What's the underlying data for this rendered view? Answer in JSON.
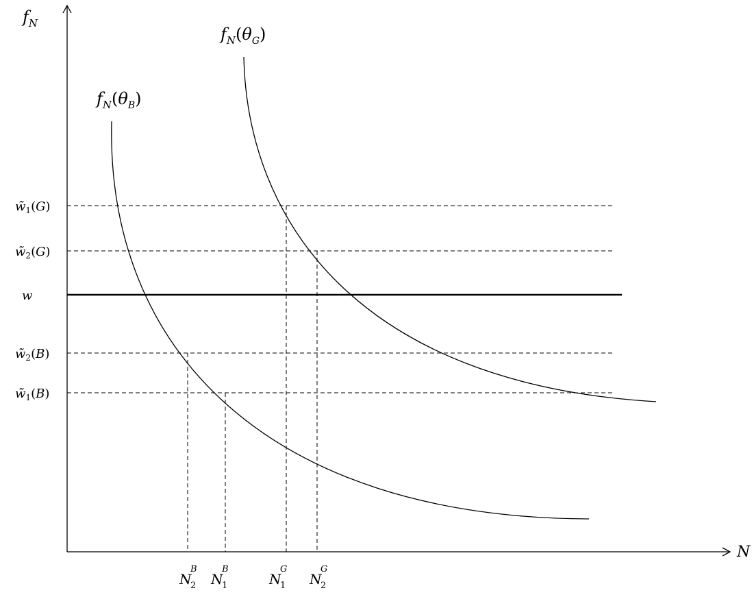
{
  "axes": {
    "y_label": {
      "base": "f",
      "sub": "N"
    },
    "x_label": "N"
  },
  "curves": {
    "good": {
      "base": "f",
      "sub": "N",
      "arg": "θ",
      "arg_sub": "G"
    },
    "bad": {
      "base": "f",
      "sub": "N",
      "arg": "θ",
      "arg_sub": "B"
    }
  },
  "y_levels": [
    {
      "id": "w1G",
      "base": "w̃",
      "sub": "1",
      "arg": "G",
      "style": "dashed"
    },
    {
      "id": "w2G",
      "base": "w̃",
      "sub": "2",
      "arg": "G",
      "style": "dashed"
    },
    {
      "id": "w",
      "base": "w",
      "sub": "",
      "arg": "",
      "style": "solid"
    },
    {
      "id": "w2B",
      "base": "w̃",
      "sub": "2",
      "arg": "B",
      "style": "dashed"
    },
    {
      "id": "w1B",
      "base": "w̃",
      "sub": "1",
      "arg": "B",
      "style": "dashed"
    }
  ],
  "x_markers": [
    {
      "id": "N2B",
      "base": "N",
      "sub": "2",
      "sup": "B"
    },
    {
      "id": "N1B",
      "base": "N",
      "sub": "1",
      "sup": "B"
    },
    {
      "id": "N1G",
      "base": "N",
      "sub": "1",
      "sup": "G"
    },
    {
      "id": "N2G",
      "base": "N",
      "sub": "2",
      "sup": "G"
    }
  ],
  "colors": {
    "line": "#000000",
    "background": "#ffffff"
  }
}
